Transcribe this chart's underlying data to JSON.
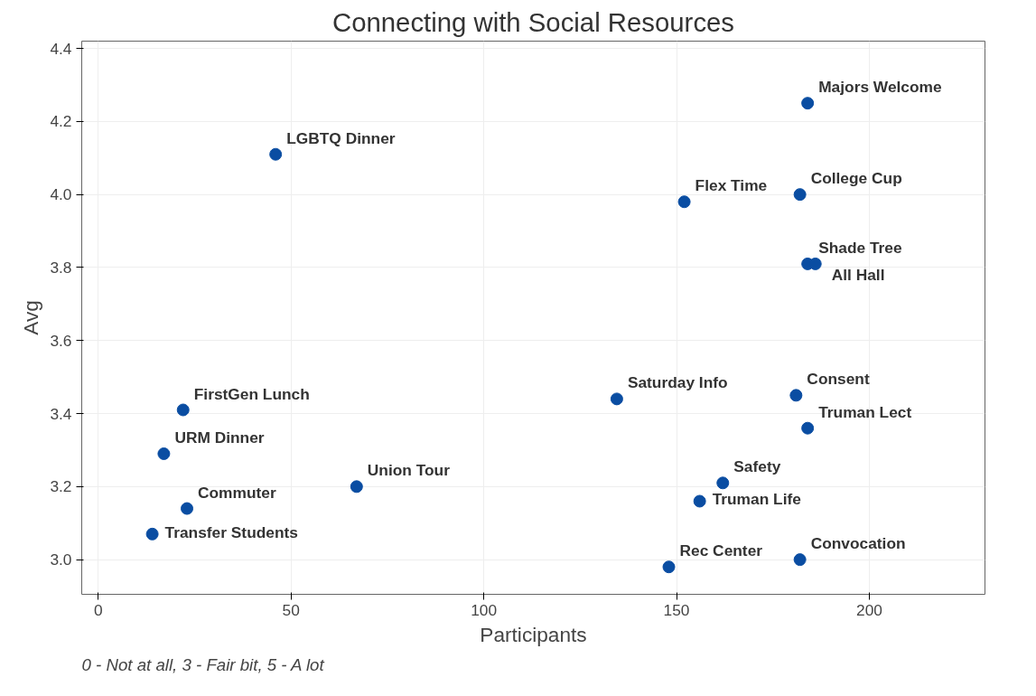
{
  "chart_data": {
    "type": "scatter",
    "title": "Connecting with Social Resources",
    "xlabel": "Participants",
    "ylabel": "Avg",
    "xlim": [
      -4.3,
      230
    ],
    "ylim": [
      2.905,
      4.42
    ],
    "xticks": [
      0,
      50,
      100,
      150,
      200
    ],
    "yticks": [
      {
        "value": 3.0,
        "label": "3.0"
      },
      {
        "value": 3.2,
        "label": "3.2"
      },
      {
        "value": 3.4,
        "label": "3.4"
      },
      {
        "value": 3.6,
        "label": "3.6"
      },
      {
        "value": 3.8,
        "label": "3.8"
      },
      {
        "value": 4.0,
        "label": "4.0"
      },
      {
        "value": 4.2,
        "label": "4.2"
      },
      {
        "value": 4.4,
        "label": "4.4"
      }
    ],
    "grid": true,
    "marker": "circle",
    "series": [
      {
        "color": "#0a4da2",
        "x": [
          184,
          46,
          152,
          182,
          184,
          186,
          134.5,
          181,
          184,
          22,
          17,
          67,
          162,
          156,
          23,
          14,
          148,
          182
        ],
        "values": [
          4.25,
          4.11,
          3.98,
          4.0,
          3.81,
          3.81,
          3.44,
          3.45,
          3.36,
          3.41,
          3.29,
          3.2,
          3.21,
          3.16,
          3.14,
          3.07,
          2.98,
          3.0
        ]
      }
    ],
    "annotations": [
      {
        "text": "Majors Welcome",
        "x": 184,
        "y": 4.25
      },
      {
        "text": "LGBTQ Dinner",
        "x": 46,
        "y": 4.11
      },
      {
        "text": "Flex Time",
        "x": 152,
        "y": 3.98
      },
      {
        "text": "College Cup",
        "x": 182,
        "y": 4.0
      },
      {
        "text": "Shade Tree",
        "x": 184,
        "y": 3.81
      },
      {
        "text": "All Hall",
        "x": 186,
        "y": 3.81
      },
      {
        "text": "Saturday Info",
        "x": 134.5,
        "y": 3.44
      },
      {
        "text": "Consent",
        "x": 181,
        "y": 3.45
      },
      {
        "text": "Truman Lect",
        "x": 184,
        "y": 3.36
      },
      {
        "text": "FirstGen Lunch",
        "x": 22,
        "y": 3.41
      },
      {
        "text": "URM Dinner",
        "x": 17,
        "y": 3.29
      },
      {
        "text": "Union Tour",
        "x": 67,
        "y": 3.2
      },
      {
        "text": "Safety",
        "x": 162,
        "y": 3.21
      },
      {
        "text": "Truman Life",
        "x": 156,
        "y": 3.16
      },
      {
        "text": "Commuter",
        "x": 23,
        "y": 3.14
      },
      {
        "text": "Transfer Students",
        "x": 14,
        "y": 3.07
      },
      {
        "text": "Rec Center",
        "x": 148,
        "y": 2.98
      },
      {
        "text": "Convocation",
        "x": 182,
        "y": 3.0
      },
      "0 - Not at all, 3 - Fair bit, 5 - A lot"
    ]
  }
}
